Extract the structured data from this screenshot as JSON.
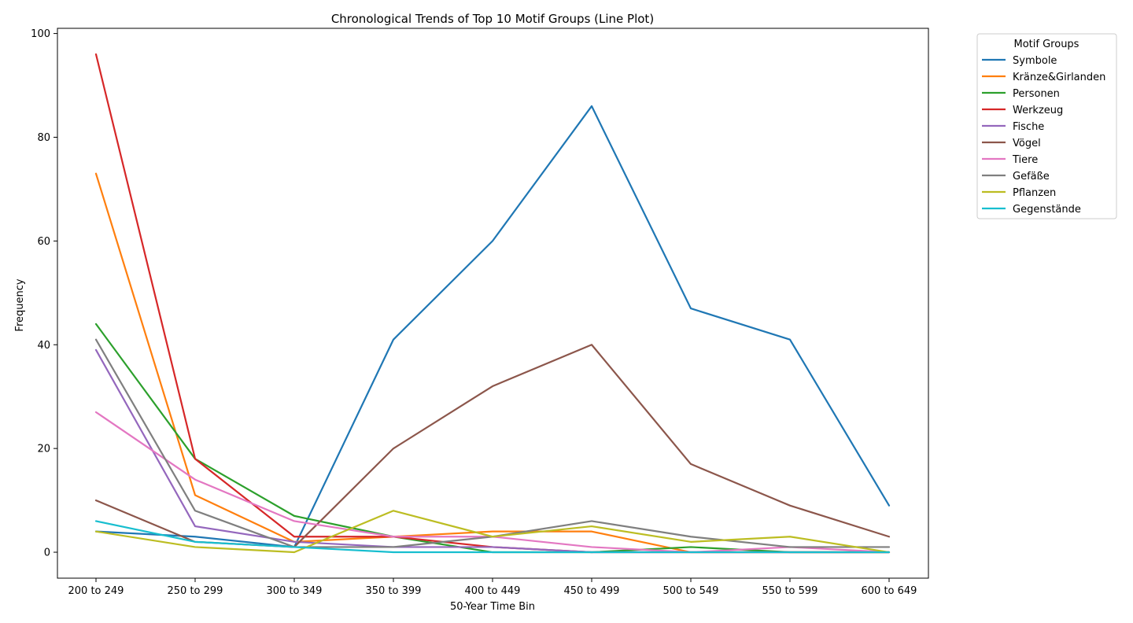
{
  "chart_data": {
    "type": "line",
    "title": "Chronological Trends of Top 10 Motif Groups (Line Plot)",
    "xlabel": "50-Year Time Bin",
    "ylabel": "Frequency",
    "categories": [
      "200 to 249",
      "250 to 299",
      "300 to 349",
      "350 to 399",
      "400 to 449",
      "450 to 499",
      "500 to 549",
      "550 to 599",
      "600 to 649"
    ],
    "ylim": [
      -5,
      101
    ],
    "yticks": [
      0,
      20,
      40,
      60,
      80,
      100
    ],
    "grid": false,
    "legend_title": "Motif Groups",
    "legend_position": "outside-top-right",
    "series": [
      {
        "name": "Symbole",
        "color": "#1f77b4",
        "values": [
          4,
          3,
          1,
          41,
          60,
          86,
          47,
          41,
          9
        ]
      },
      {
        "name": "Kränze&Girlanden",
        "color": "#ff7f0e",
        "values": [
          73,
          11,
          2,
          3,
          4,
          4,
          0,
          0,
          0
        ]
      },
      {
        "name": "Personen",
        "color": "#2ca02c",
        "values": [
          44,
          18,
          7,
          3,
          0,
          0,
          1,
          0,
          0
        ]
      },
      {
        "name": "Werkzeug",
        "color": "#d62728",
        "values": [
          96,
          18,
          3,
          3,
          1,
          0,
          0,
          0,
          0
        ]
      },
      {
        "name": "Fische",
        "color": "#9467bd",
        "values": [
          39,
          5,
          2,
          1,
          1,
          0,
          0,
          0,
          0
        ]
      },
      {
        "name": "Vögel",
        "color": "#8c564b",
        "values": [
          10,
          2,
          1,
          20,
          32,
          40,
          17,
          9,
          3
        ]
      },
      {
        "name": "Tiere",
        "color": "#e377c2",
        "values": [
          27,
          14,
          6,
          3,
          3,
          1,
          0,
          1,
          0
        ]
      },
      {
        "name": "Gefäße",
        "color": "#7f7f7f",
        "values": [
          41,
          8,
          1,
          1,
          3,
          6,
          3,
          1,
          1
        ]
      },
      {
        "name": "Pflanzen",
        "color": "#bcbd22",
        "values": [
          4,
          1,
          0,
          8,
          3,
          5,
          2,
          3,
          0
        ]
      },
      {
        "name": "Gegenstände",
        "color": "#17becf",
        "values": [
          6,
          2,
          1,
          0,
          0,
          0,
          0,
          0,
          0
        ]
      }
    ]
  }
}
